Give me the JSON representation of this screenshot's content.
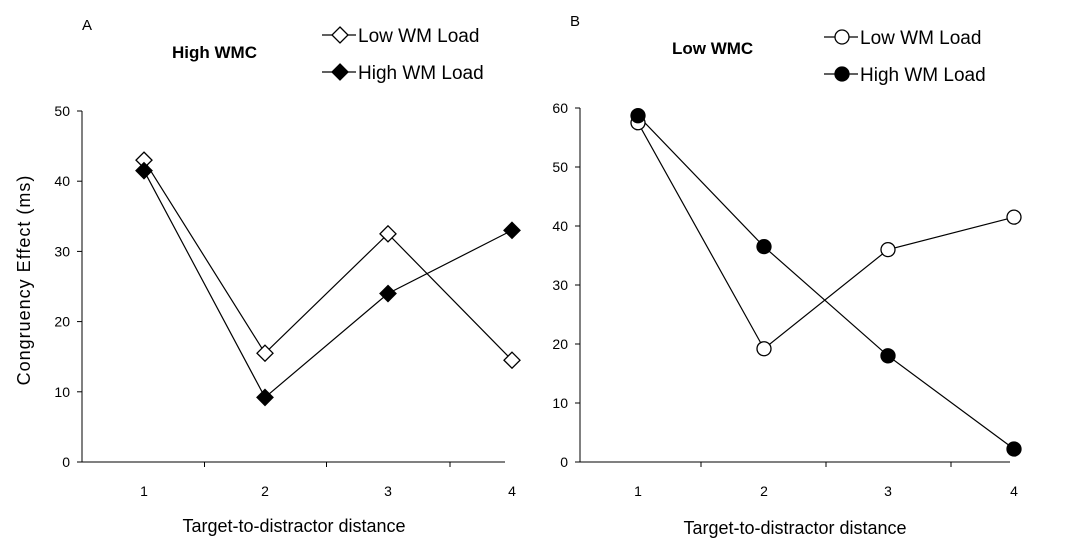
{
  "chart_data": [
    {
      "type": "line",
      "panel_label": "A",
      "title": "High WMC",
      "xlabel": "Target-to-distractor distance",
      "ylabel": "Congruency Effect (ms)",
      "categories": [
        "1",
        "2",
        "3",
        "4"
      ],
      "ylim": [
        0,
        50
      ],
      "yticks": [
        "0",
        "10",
        "20",
        "30",
        "40",
        "50"
      ],
      "legend_position": "top-right",
      "series": [
        {
          "name": "Low WM Load",
          "marker": "diamond-open",
          "values": [
            43,
            15.5,
            32.5,
            14.5
          ]
        },
        {
          "name": "High WM Load",
          "marker": "diamond-filled",
          "values": [
            41.5,
            9.2,
            24,
            33
          ]
        }
      ]
    },
    {
      "type": "line",
      "panel_label": "B",
      "title": "Low WMC",
      "xlabel": "Target-to-distractor distance",
      "ylabel": "",
      "categories": [
        "1",
        "2",
        "3",
        "4"
      ],
      "ylim": [
        0,
        60
      ],
      "yticks": [
        "0",
        "10",
        "20",
        "30",
        "40",
        "50",
        "60"
      ],
      "legend_position": "top-right",
      "series": [
        {
          "name": "Low WM Load",
          "marker": "circle-open",
          "values": [
            57.5,
            19.2,
            36,
            41.5
          ]
        },
        {
          "name": "High WM Load",
          "marker": "circle-filled",
          "values": [
            58.7,
            36.5,
            18,
            2.2
          ]
        }
      ]
    }
  ]
}
